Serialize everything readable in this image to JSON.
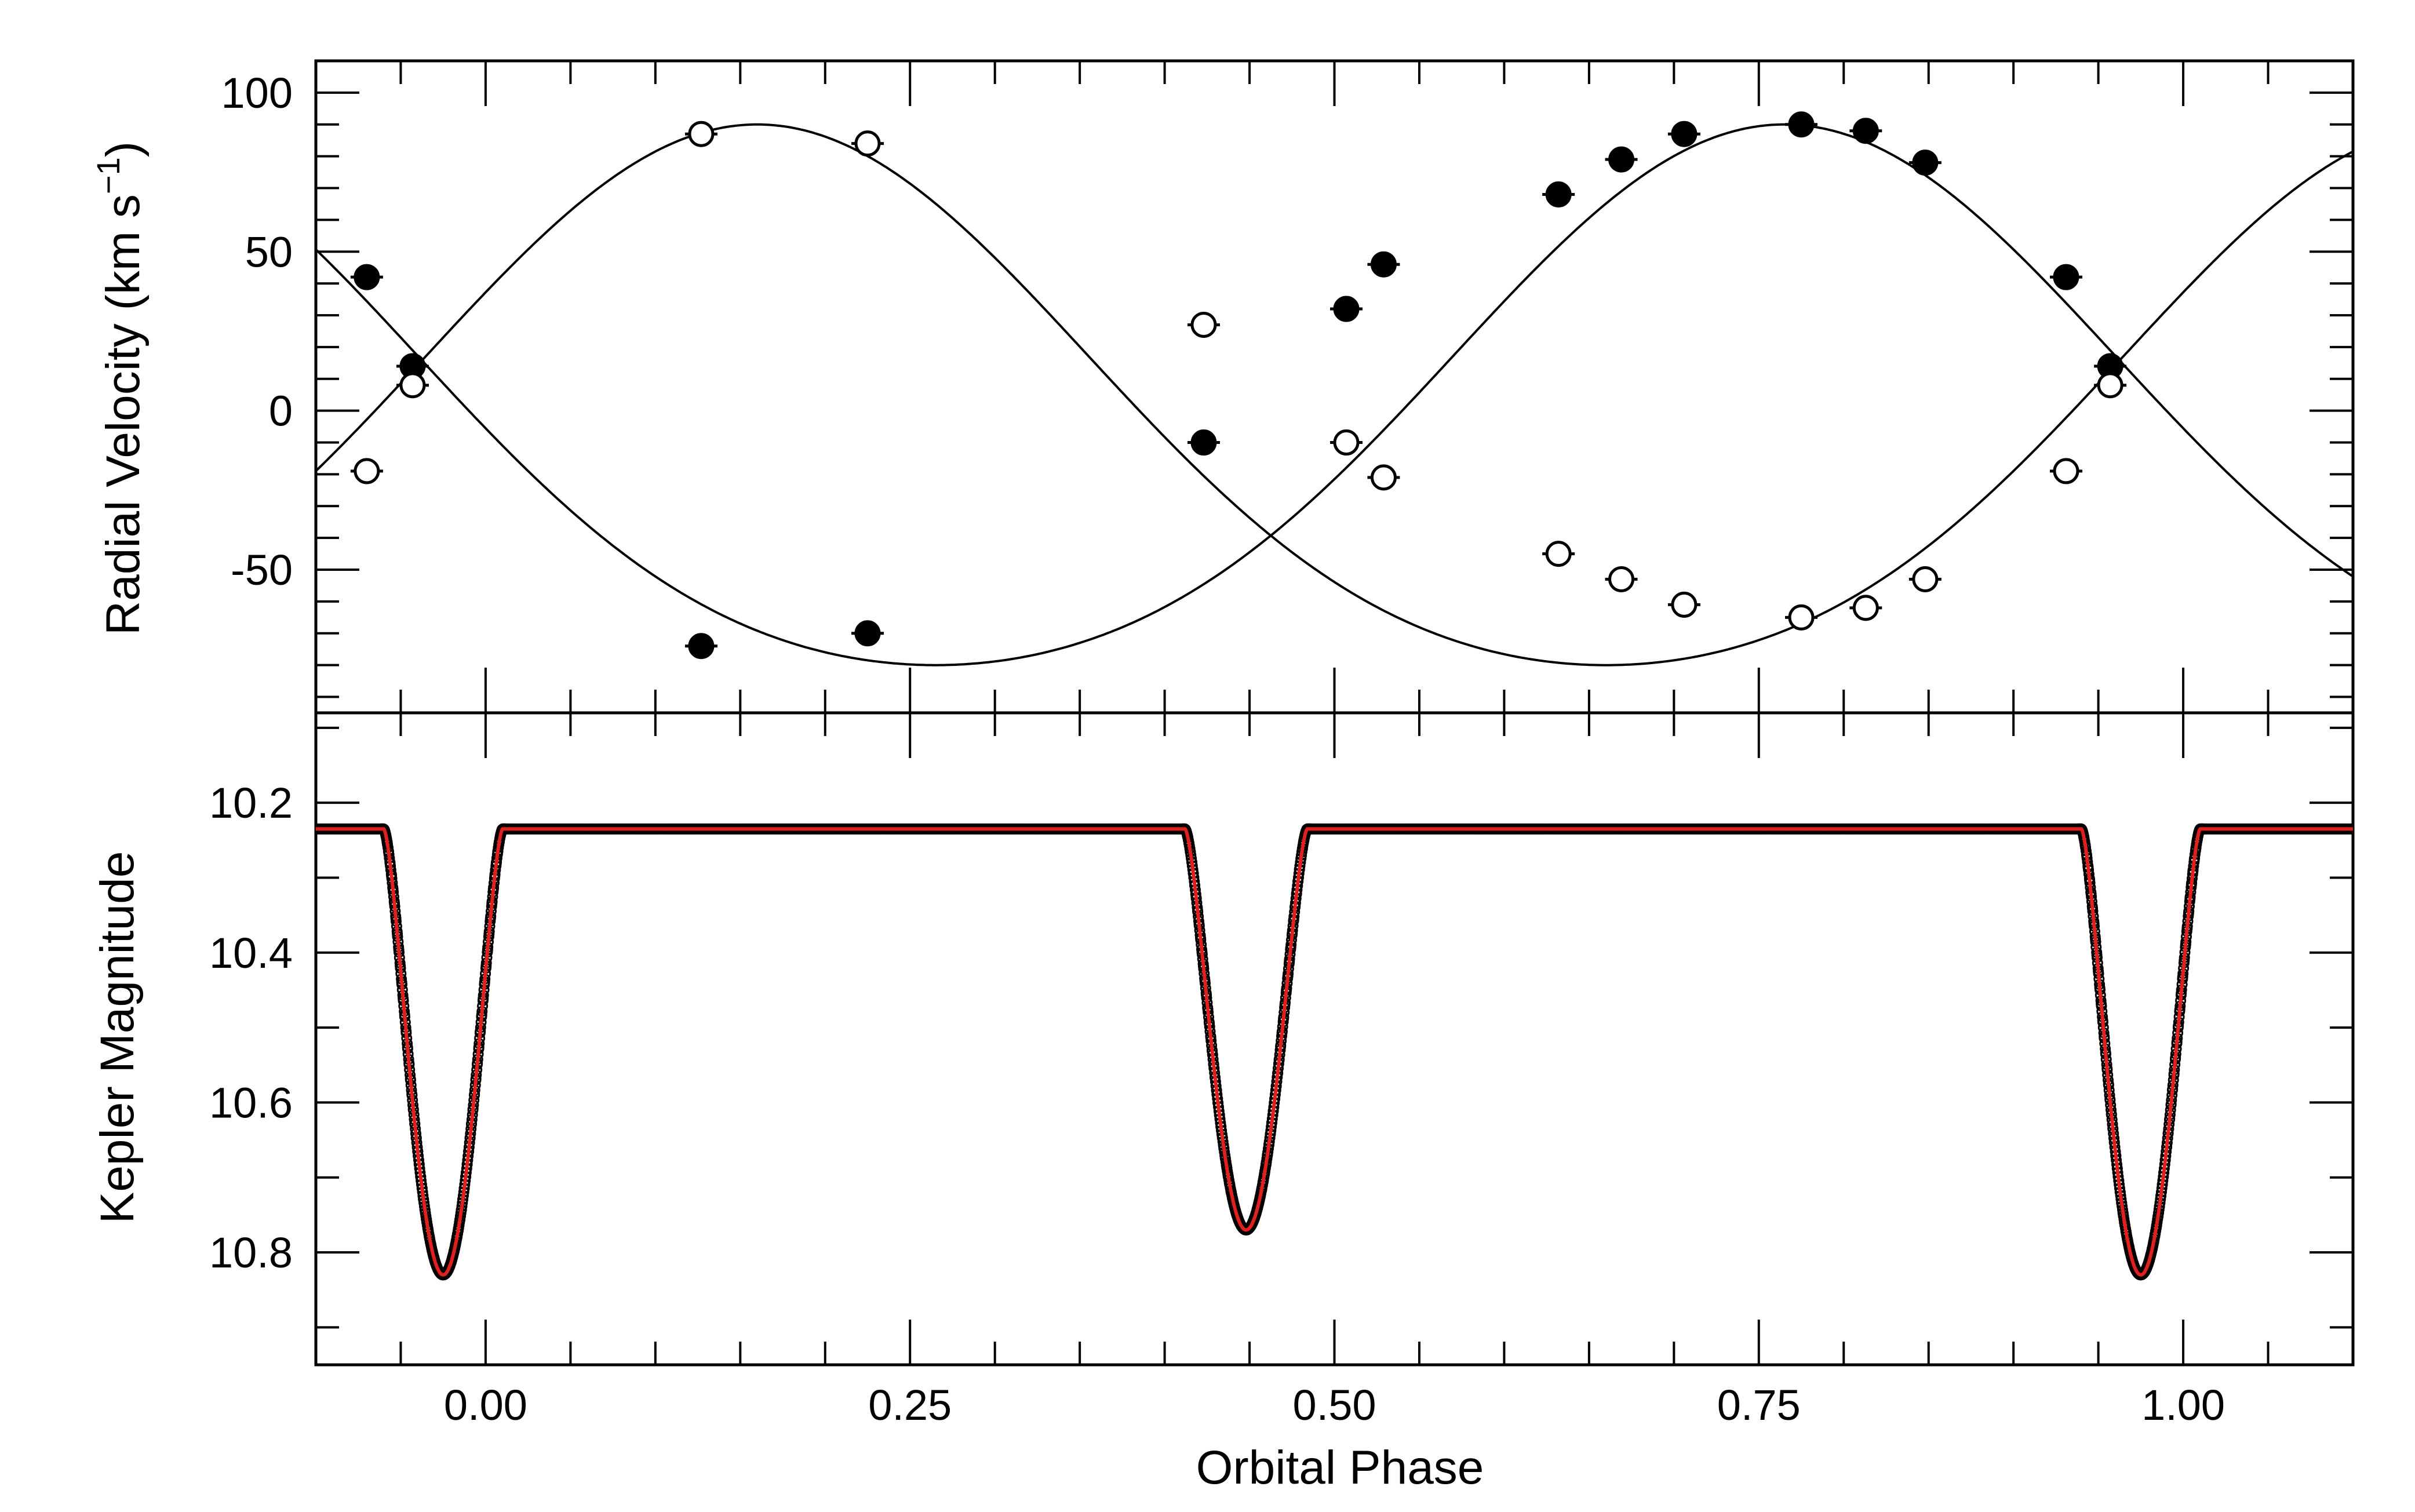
{
  "chart_data": [
    {
      "panel": "top",
      "type": "scatter",
      "ylabel": "Radial Velocity (km s",
      "ylabel_exponent": "−1",
      "ylabel_close": ")",
      "xlim": [
        -0.1,
        1.1
      ],
      "ylim": [
        -95,
        110
      ],
      "yticks": [
        100,
        50,
        0,
        -50
      ],
      "ytick_labels": [
        "100",
        "50",
        "0",
        "-50"
      ],
      "series": [
        {
          "marker": "filled-circle",
          "points": [
            {
              "x": -0.07,
              "y": 42
            },
            {
              "x": -0.043,
              "y": 14
            },
            {
              "x": 0.127,
              "y": -74
            },
            {
              "x": 0.225,
              "y": -70
            },
            {
              "x": 0.423,
              "y": -10
            },
            {
              "x": 0.507,
              "y": 32
            },
            {
              "x": 0.529,
              "y": 46
            },
            {
              "x": 0.632,
              "y": 68
            },
            {
              "x": 0.669,
              "y": 79
            },
            {
              "x": 0.706,
              "y": 87
            },
            {
              "x": 0.775,
              "y": 90
            },
            {
              "x": 0.813,
              "y": 88
            },
            {
              "x": 0.848,
              "y": 78
            },
            {
              "x": 0.931,
              "y": 42
            },
            {
              "x": 0.957,
              "y": 14
            }
          ]
        },
        {
          "marker": "open-circle",
          "points": [
            {
              "x": -0.07,
              "y": -19
            },
            {
              "x": -0.043,
              "y": 8
            },
            {
              "x": 0.127,
              "y": 87
            },
            {
              "x": 0.225,
              "y": 84
            },
            {
              "x": 0.423,
              "y": 27
            },
            {
              "x": 0.507,
              "y": -10
            },
            {
              "x": 0.529,
              "y": -21
            },
            {
              "x": 0.632,
              "y": -45
            },
            {
              "x": 0.669,
              "y": -53
            },
            {
              "x": 0.706,
              "y": -61
            },
            {
              "x": 0.775,
              "y": -65
            },
            {
              "x": 0.813,
              "y": -62
            },
            {
              "x": 0.848,
              "y": -53
            },
            {
              "x": 0.931,
              "y": -19
            },
            {
              "x": 0.957,
              "y": 8
            }
          ]
        }
      ],
      "model_curves": [
        {
          "name_for_marker": "filled-circle",
          "gamma": 5,
          "K": 85,
          "peak_phase": 0.765
        },
        {
          "name_for_marker": "open-circle",
          "gamma": 5,
          "K": 85,
          "peak_phase": 0.16
        }
      ],
      "model_asymmetry": 0.22
    },
    {
      "panel": "bottom",
      "type": "line",
      "ylabel": "Kepler Magnitude",
      "xlabel": "Orbital Phase",
      "xlim": [
        -0.1,
        1.1
      ],
      "ylim": [
        10.95,
        10.08
      ],
      "y_inverted": true,
      "yticks": [
        10.2,
        10.4,
        10.6,
        10.8
      ],
      "ytick_labels": [
        "10.2",
        "10.4",
        "10.6",
        "10.8"
      ],
      "xticks": [
        0.0,
        0.25,
        0.5,
        0.75,
        1.0
      ],
      "xtick_labels": [
        "0.00",
        "0.25",
        "0.50",
        "0.75",
        "1.00"
      ],
      "baseline_magnitude": 10.235,
      "eclipses": [
        {
          "center_phase": -0.025,
          "depth_magnitude": 10.83,
          "half_width_phase": 0.035
        },
        {
          "center_phase": 0.448,
          "depth_magnitude": 10.77,
          "half_width_phase": 0.036
        },
        {
          "center_phase": 0.975,
          "depth_magnitude": 10.83,
          "half_width_phase": 0.035
        }
      ],
      "model_color": "#e0201e",
      "data_color": "#000000"
    }
  ]
}
